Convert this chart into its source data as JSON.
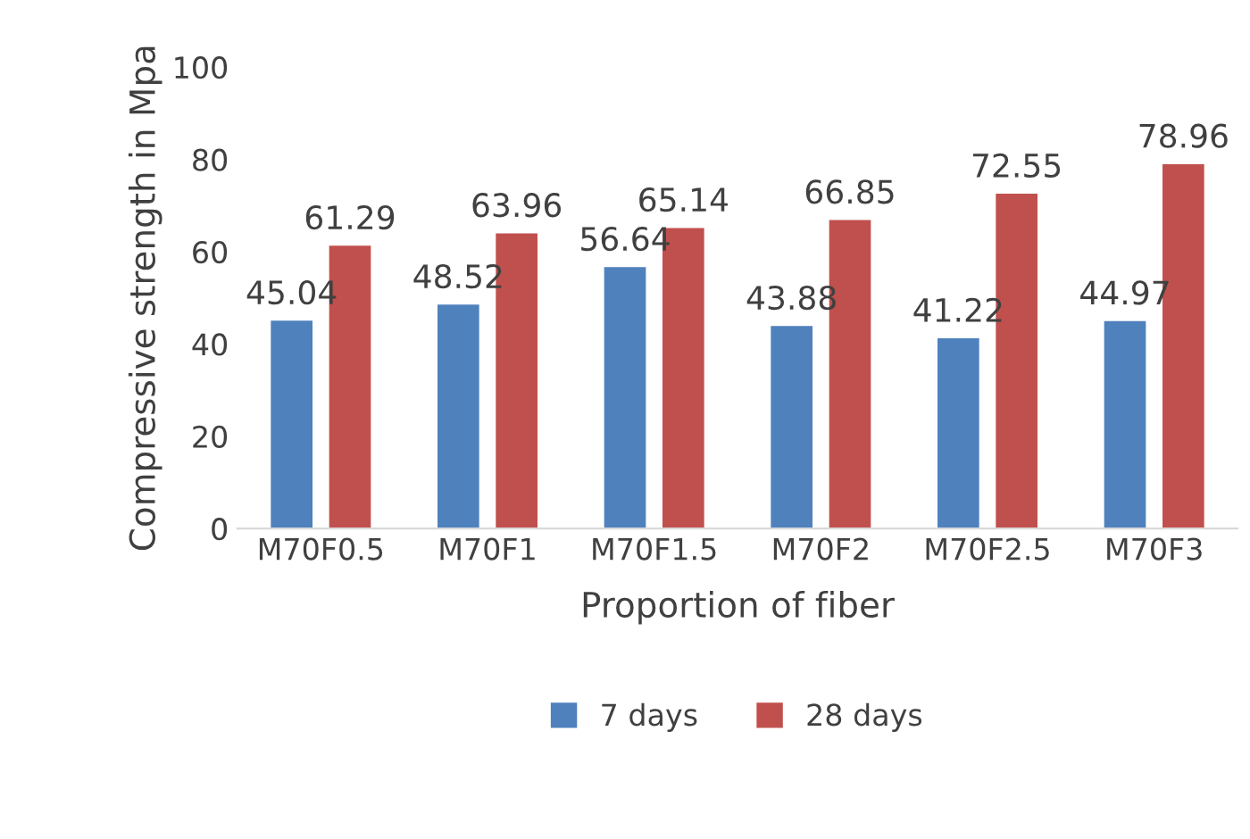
{
  "chart_data": {
    "type": "bar",
    "xlabel": "Proportion of fiber",
    "ylabel": "Compressive strength in Mpa",
    "categories": [
      "M70F0.5",
      "M70F1",
      "M70F1.5",
      "M70F2",
      "M70F2.5",
      "M70F3"
    ],
    "series": [
      {
        "name": "7 days",
        "color": "#4f81bd",
        "values": [
          45.04,
          48.52,
          56.64,
          43.88,
          41.22,
          44.97
        ]
      },
      {
        "name": "28 days",
        "color": "#c0504d",
        "values": [
          61.29,
          63.96,
          65.14,
          66.85,
          72.55,
          78.96
        ]
      }
    ],
    "ylim": [
      0,
      100
    ],
    "yticks": [
      0,
      20,
      40,
      60,
      80,
      100
    ],
    "grid": false,
    "legend": "bottom",
    "data_labels": true
  }
}
